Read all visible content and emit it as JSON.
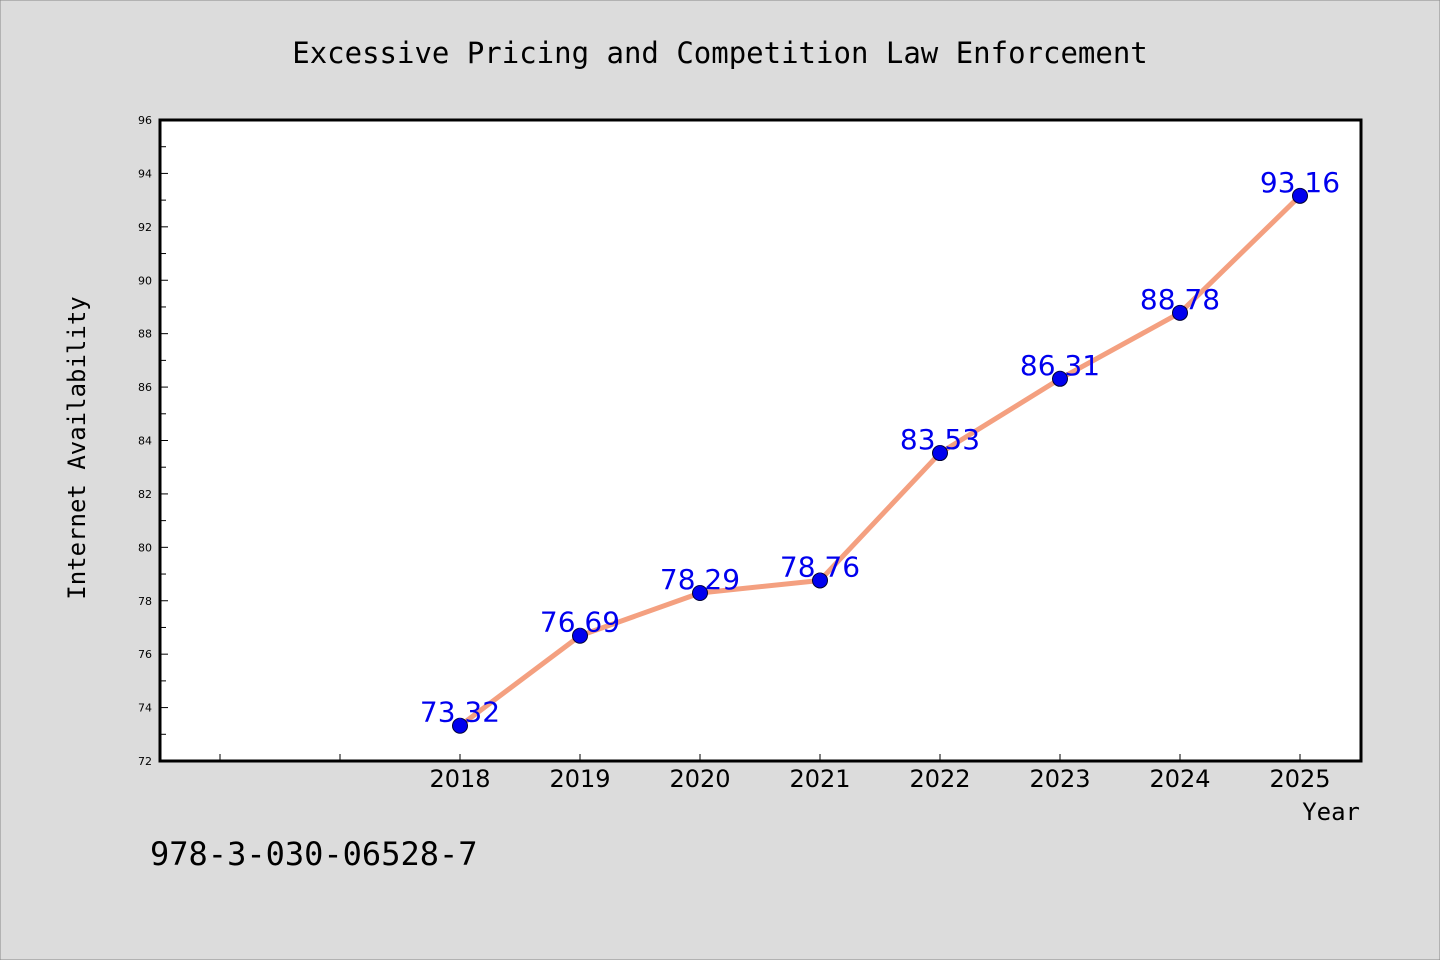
{
  "chart_data": {
    "type": "line",
    "title": "Excessive Pricing and Competition Law Enforcement",
    "xlabel": "Year",
    "ylabel": "Internet Availability",
    "categories": [
      "2018",
      "2019",
      "2020",
      "2021",
      "2022",
      "2023",
      "2024",
      "2025"
    ],
    "series": [
      {
        "values": [
          73.32,
          76.69,
          78.29,
          78.76,
          83.53,
          86.31,
          88.78,
          93.16
        ],
        "labels": [
          "73.32",
          "76.69",
          "78.29",
          "78.76",
          "83.53",
          "86.31",
          "88.78",
          "93.16"
        ]
      }
    ],
    "ylim": [
      72,
      96
    ],
    "yticks": [
      "72",
      "74",
      "76",
      "78",
      "80",
      "82",
      "84",
      "86",
      "88",
      "90",
      "92",
      "94",
      "96"
    ],
    "grid": false,
    "legend": "none",
    "colors": {
      "line": "#f4a080",
      "marker": "#0000ee",
      "label": "#0000ee",
      "background": "#dcdcdc",
      "plot_background": "#ffffff"
    }
  },
  "footer": {
    "isbn": "978-3-030-06528-7"
  }
}
